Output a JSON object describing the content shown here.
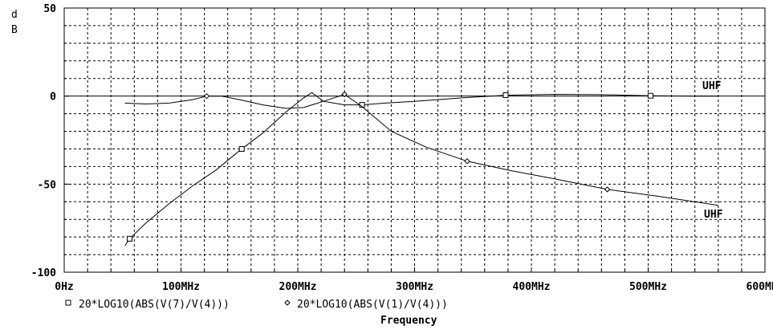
{
  "chart_data": {
    "type": "line",
    "ylabel": "d\nB",
    "xlabel": "Frequency",
    "xlim": [
      0,
      600
    ],
    "ylim": [
      -100,
      50
    ],
    "x_tick_labels": [
      "0Hz",
      "100MHz",
      "200MHz",
      "300MHz",
      "400MHz",
      "500MHz",
      "600MHz"
    ],
    "y_tick_labels": [
      "50",
      "0",
      "-50",
      "-100"
    ],
    "series": [
      {
        "name": "20*LOG10(ABS(V(7)/V(4)))",
        "marker": "square",
        "points": [
          [
            52,
            -85
          ],
          [
            56,
            -81
          ],
          [
            70,
            -72
          ],
          [
            90,
            -61
          ],
          [
            110,
            -51
          ],
          [
            130,
            -42
          ],
          [
            150,
            -31
          ],
          [
            170,
            -21
          ],
          [
            190,
            -9
          ],
          [
            205,
            -1
          ],
          [
            212,
            2
          ],
          [
            222,
            -3
          ],
          [
            240,
            -5
          ],
          [
            255,
            -5
          ],
          [
            275,
            -4
          ],
          [
            300,
            -3
          ],
          [
            340,
            -1
          ],
          [
            378,
            0.5
          ],
          [
            420,
            1
          ],
          [
            460,
            0.8
          ],
          [
            502,
            0.2
          ],
          [
            540,
            0
          ],
          [
            560,
            0
          ]
        ],
        "marker_x": [
          56,
          152,
          255,
          378,
          502
        ]
      },
      {
        "name": "20*LOG10(ABS(V(1)/V(4)))",
        "marker": "diamond",
        "points": [
          [
            52,
            -4
          ],
          [
            70,
            -4.5
          ],
          [
            90,
            -4
          ],
          [
            110,
            -2
          ],
          [
            122,
            0
          ],
          [
            135,
            0
          ],
          [
            150,
            -2
          ],
          [
            170,
            -5
          ],
          [
            190,
            -7
          ],
          [
            205,
            -6.5
          ],
          [
            222,
            -3
          ],
          [
            240,
            1
          ],
          [
            255,
            -6
          ],
          [
            280,
            -20
          ],
          [
            310,
            -29
          ],
          [
            345,
            -37
          ],
          [
            380,
            -42
          ],
          [
            420,
            -47
          ],
          [
            465,
            -53
          ],
          [
            510,
            -57
          ],
          [
            560,
            -62
          ]
        ],
        "marker_x": [
          122,
          240,
          345,
          465
        ]
      }
    ],
    "annotations": [
      "UHF",
      "UHF"
    ],
    "grid": "dashed"
  }
}
